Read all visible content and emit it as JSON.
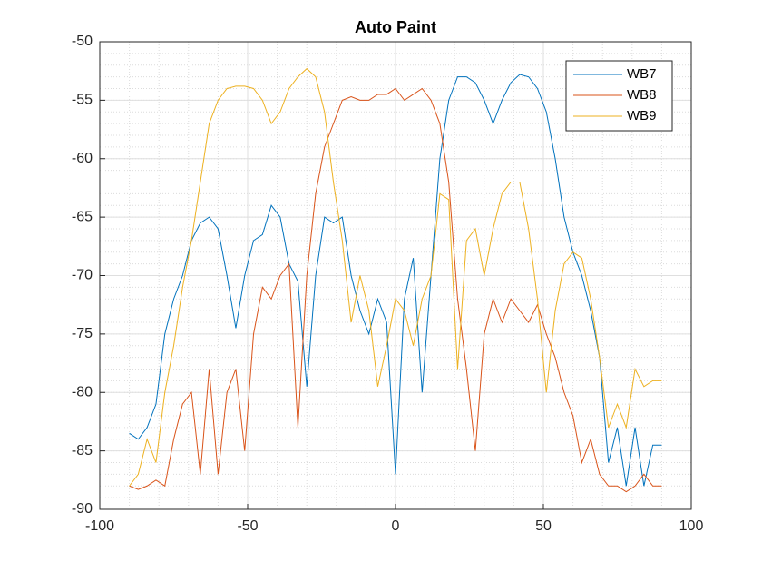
{
  "chart_data": {
    "type": "line",
    "title": "Auto Paint",
    "x": [
      -90,
      -87,
      -84,
      -81,
      -78,
      -75,
      -72,
      -69,
      -66,
      -63,
      -60,
      -57,
      -54,
      -51,
      -48,
      -45,
      -42,
      -39,
      -36,
      -33,
      -30,
      -27,
      -24,
      -21,
      -18,
      -15,
      -12,
      -9,
      -6,
      -3,
      0,
      3,
      6,
      9,
      12,
      15,
      18,
      21,
      24,
      27,
      30,
      33,
      36,
      39,
      42,
      45,
      48,
      51,
      54,
      57,
      60,
      63,
      66,
      69,
      72,
      75,
      78,
      81,
      84,
      87,
      90
    ],
    "series": [
      {
        "name": "WB7",
        "color": "#0072BD",
        "values": [
          -83.5,
          -84,
          -83,
          -81,
          -75,
          -72,
          -70,
          -67,
          -65.5,
          -65,
          -66,
          -70,
          -74.5,
          -70,
          -67,
          -66.5,
          -64,
          -65,
          -69,
          -70.5,
          -79.5,
          -70,
          -65,
          -65.5,
          -65,
          -70,
          -73,
          -75,
          -72,
          -74,
          -87,
          -72,
          -68.5,
          -80,
          -70,
          -60,
          -55,
          -53,
          -53,
          -53.5,
          -55,
          -57,
          -55,
          -53.5,
          -52.8,
          -53,
          -54,
          -56,
          -60,
          -65,
          -68,
          -70,
          -73,
          -77,
          -86,
          -83,
          -88,
          -83,
          -88,
          -84.5,
          -84.5
        ]
      },
      {
        "name": "WB8",
        "color": "#D95319",
        "values": [
          -88,
          -88.3,
          -88,
          -87.5,
          -88,
          -84,
          -81,
          -80,
          -87,
          -78,
          -87,
          -80,
          -78,
          -85,
          -75,
          -71,
          -72,
          -70,
          -69,
          -83,
          -70,
          -63,
          -59,
          -57,
          -55,
          -54.7,
          -55,
          -55,
          -54.5,
          -54.5,
          -54,
          -55,
          -54.5,
          -54,
          -55,
          -57,
          -62,
          -72,
          -78,
          -85,
          -75,
          -72,
          -74,
          -72,
          -73,
          -74,
          -72.5,
          -75,
          -77,
          -80,
          -82,
          -86,
          -84,
          -87,
          -88,
          -88,
          -88.5,
          -88,
          -87,
          -88,
          -88
        ]
      },
      {
        "name": "WB9",
        "color": "#EDB120",
        "values": [
          -88,
          -87,
          -84,
          -86,
          -80,
          -76,
          -71,
          -67,
          -62,
          -57,
          -55,
          -54,
          -53.8,
          -53.8,
          -54,
          -55,
          -57,
          -56,
          -54,
          -53,
          -52.3,
          -53,
          -56,
          -62,
          -67,
          -74,
          -70,
          -73,
          -79.5,
          -76,
          -72,
          -73,
          -76,
          -72,
          -70,
          -63,
          -63.5,
          -78,
          -67,
          -66,
          -70,
          -66,
          -63,
          -62,
          -62,
          -66,
          -72,
          -80,
          -73,
          -69,
          -68,
          -68.5,
          -72,
          -77,
          -83,
          -81,
          -83,
          -78,
          -79.5,
          -79,
          -79
        ]
      }
    ],
    "xlim": [
      -100,
      100
    ],
    "xticks": [
      -100,
      -50,
      0,
      50,
      100
    ],
    "ylim": [
      -90,
      -50
    ],
    "yticks": [
      -90,
      -85,
      -80,
      -75,
      -70,
      -65,
      -60,
      -55,
      -50
    ],
    "xminor_ticks": [
      -100,
      -90,
      -80,
      -70,
      -60,
      -50,
      -40,
      -30,
      -20,
      -10,
      0,
      10,
      20,
      30,
      40,
      50,
      60,
      70,
      80,
      90,
      100
    ],
    "yminor_ticks": [
      -90,
      -89,
      -88,
      -87,
      -86,
      -85,
      -84,
      -83,
      -82,
      -81,
      -80,
      -79,
      -78,
      -77,
      -76,
      -75,
      -74,
      -73,
      -72,
      -71,
      -70,
      -69,
      -68,
      -67,
      -66,
      -65,
      -64,
      -63,
      -62,
      -61,
      -60,
      -59,
      -58,
      -57,
      -56,
      -55,
      -54,
      -53,
      -52,
      -51,
      -50
    ],
    "grid": true,
    "minor_grid": true,
    "legend": "upper-right"
  }
}
